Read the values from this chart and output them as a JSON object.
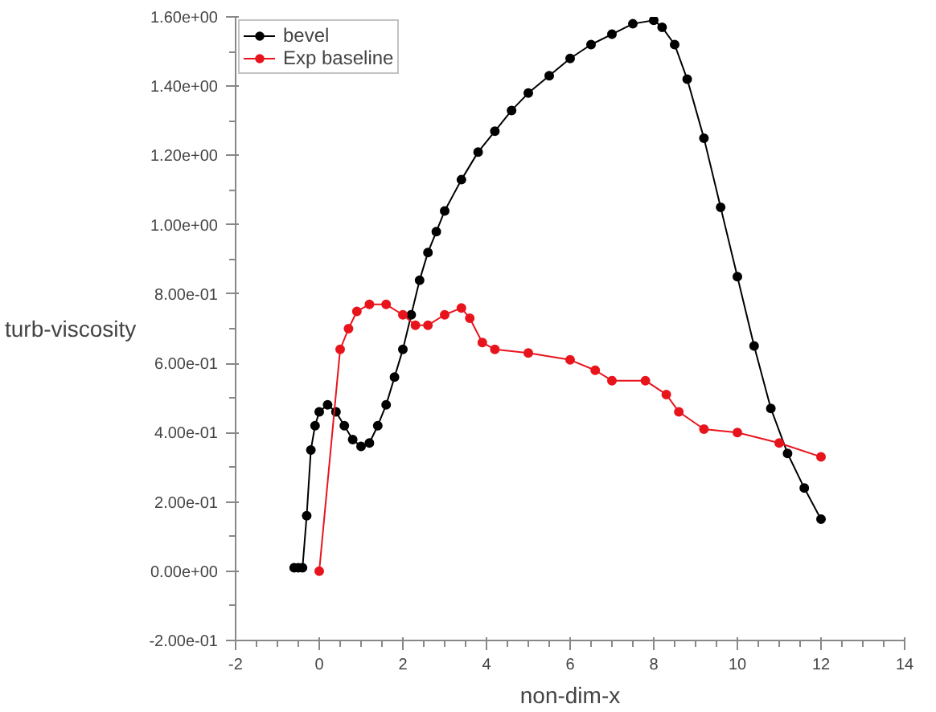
{
  "chart_data": {
    "type": "line",
    "xlabel": "non-dim-x",
    "ylabel": "turb-viscosity",
    "xlim": [
      -2,
      14
    ],
    "ylim": [
      -0.2,
      1.6
    ],
    "xticks": [
      -2,
      0,
      2,
      4,
      6,
      8,
      10,
      12,
      14
    ],
    "yticks": [
      {
        "value": -0.2,
        "label": "-2.00e-01"
      },
      {
        "value": 0,
        "label": "0.00e+00"
      },
      {
        "value": 0.2,
        "label": "2.00e-01"
      },
      {
        "value": 0.4,
        "label": "4.00e-01"
      },
      {
        "value": 0.6,
        "label": "6.00e-01"
      },
      {
        "value": 0.8,
        "label": "8.00e-01"
      },
      {
        "value": 1.0,
        "label": "1.00e+00"
      },
      {
        "value": 1.2,
        "label": "1.20e+00"
      },
      {
        "value": 1.4,
        "label": "1.40e+00"
      },
      {
        "value": 1.6,
        "label": "1.60e+00"
      }
    ],
    "marker": "circle",
    "line_style": "solid",
    "grid": false,
    "legend": "top left",
    "series": [
      {
        "name": "bevel",
        "color": "#000000",
        "x": [
          -0.6,
          -0.5,
          -0.4,
          -0.3,
          -0.2,
          -0.1,
          0,
          0.2,
          0.4,
          0.6,
          0.8,
          1.0,
          1.2,
          1.4,
          1.6,
          1.8,
          2.0,
          2.2,
          2.4,
          2.6,
          2.8,
          3.0,
          3.4,
          3.8,
          4.2,
          4.6,
          5.0,
          5.5,
          6.0,
          6.5,
          7.0,
          7.5,
          8.0,
          8.2,
          8.5,
          8.8,
          9.2,
          9.6,
          10.0,
          10.4,
          10.8,
          11.2,
          11.6,
          12.0
        ],
        "values": [
          0.01,
          0.01,
          0.01,
          0.16,
          0.35,
          0.42,
          0.46,
          0.48,
          0.46,
          0.42,
          0.38,
          0.36,
          0.37,
          0.42,
          0.48,
          0.56,
          0.64,
          0.74,
          0.84,
          0.92,
          0.98,
          1.04,
          1.13,
          1.21,
          1.27,
          1.33,
          1.38,
          1.43,
          1.48,
          1.52,
          1.55,
          1.58,
          1.59,
          1.57,
          1.52,
          1.42,
          1.25,
          1.05,
          0.85,
          0.65,
          0.47,
          0.34,
          0.24,
          0.15
        ]
      },
      {
        "name": "Exp baseline",
        "color": "#e8141c",
        "x": [
          0,
          0.5,
          0.7,
          0.9,
          1.2,
          1.6,
          2.0,
          2.3,
          2.6,
          3.0,
          3.4,
          3.6,
          3.9,
          4.2,
          5,
          6,
          6.6,
          7,
          7.8,
          8.3,
          8.6,
          9.2,
          10,
          11,
          12
        ],
        "values": [
          0,
          0.64,
          0.7,
          0.75,
          0.77,
          0.77,
          0.74,
          0.71,
          0.71,
          0.74,
          0.76,
          0.73,
          0.66,
          0.64,
          0.63,
          0.61,
          0.58,
          0.55,
          0.55,
          0.51,
          0.46,
          0.41,
          0.4,
          0.37,
          0.33
        ]
      }
    ]
  }
}
